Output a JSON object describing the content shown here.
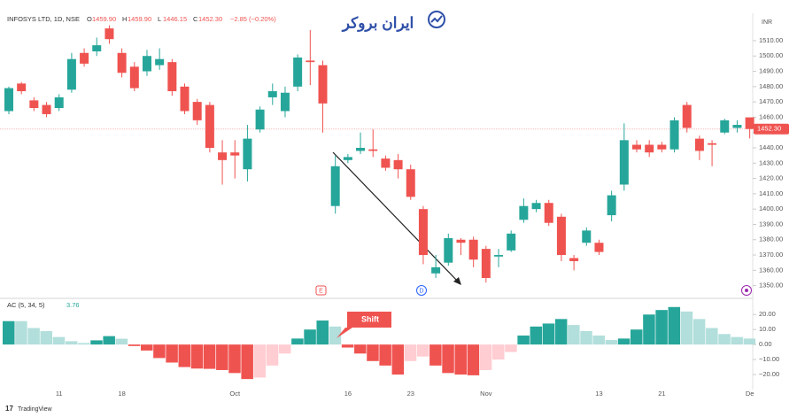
{
  "header": {
    "symbol": "INFOSYS LTD, 1D, NSE",
    "ohlc": [
      {
        "key": "O",
        "text": "1459.90"
      },
      {
        "key": "H",
        "text": "1459.90"
      },
      {
        "key": "L",
        "text": "1446.15"
      },
      {
        "key": "C",
        "text": "1452.30"
      }
    ],
    "change": "−2.85 (−0.20%)"
  },
  "watermark": "ایران بروکر",
  "footer": "TradingView",
  "events": [
    "E",
    "D"
  ],
  "chart_data": [
    {
      "type": "candlestick",
      "currency": "INR",
      "categories": [
        null,
        null,
        null,
        null,
        "11",
        null,
        null,
        null,
        null,
        "18",
        null,
        null,
        null,
        null,
        null,
        null,
        null,
        null,
        "Oct",
        null,
        null,
        null,
        null,
        null,
        null,
        null,
        null,
        "16",
        null,
        null,
        null,
        null,
        "23",
        null,
        null,
        null,
        null,
        null,
        "Nov",
        null,
        null,
        null,
        null,
        null,
        null,
        null,
        null,
        "13",
        null,
        null,
        null,
        null,
        "21",
        null,
        null,
        null,
        null,
        null,
        null,
        "De"
      ],
      "open": [
        1464,
        1482,
        1471,
        1468,
        1466,
        1478,
        1502,
        1503,
        1518,
        1502,
        1493,
        1490,
        1494,
        1496,
        1480,
        1470,
        1468,
        1437,
        1437,
        1426,
        1452,
        1473,
        1464,
        1480,
        1497,
        1494,
        1402,
        1432,
        1438,
        1439,
        1433,
        1432,
        1426,
        1400,
        1358,
        1365,
        1380,
        1380,
        1374,
        1369,
        1373,
        1393,
        1400,
        1404,
        1395,
        1368,
        1378,
        1378,
        1396,
        1416,
        1442,
        1442,
        1442,
        1439,
        1468,
        1446,
        1443,
        1450,
        1453,
        1459.9
      ],
      "high": [
        1480,
        1483,
        1473,
        1470,
        1475,
        1502,
        1505,
        1512,
        1520,
        1505,
        1496,
        1504,
        1505,
        1498,
        1482,
        1472,
        1470,
        1445,
        1445,
        1455,
        1467,
        1482,
        1480,
        1501,
        1517,
        1497,
        1435,
        1436,
        1450,
        1452,
        1435,
        1436,
        1429,
        1402,
        1370,
        1384,
        1381,
        1382,
        1376,
        1374,
        1386,
        1407,
        1406,
        1406,
        1397,
        1370,
        1388,
        1380,
        1412,
        1456,
        1445,
        1445,
        1444,
        1460,
        1470,
        1448,
        1445,
        1459,
        1458,
        1459.9
      ],
      "low": [
        1462,
        1475,
        1464,
        1460,
        1464,
        1476,
        1493,
        1500,
        1508,
        1486,
        1477,
        1487,
        1491,
        1474,
        1462,
        1455,
        1437,
        1416,
        1420,
        1418,
        1450,
        1468,
        1460,
        1477,
        1481,
        1450,
        1397,
        1430,
        1436,
        1434,
        1425,
        1420,
        1406,
        1364,
        1355,
        1363,
        1370,
        1362,
        1352,
        1362,
        1372,
        1391,
        1398,
        1389,
        1366,
        1360,
        1376,
        1370,
        1392,
        1412,
        1437,
        1434,
        1437,
        1437,
        1450,
        1432,
        1428,
        1449,
        1450,
        1446.15
      ],
      "close": [
        1479,
        1477,
        1466,
        1462,
        1473,
        1498,
        1495,
        1507,
        1511,
        1489,
        1479,
        1500,
        1498,
        1477,
        1464,
        1458,
        1440,
        1432,
        1435,
        1446,
        1465,
        1477,
        1476,
        1499,
        1496,
        1469,
        1428,
        1434,
        1440,
        1438,
        1427,
        1426,
        1408,
        1370,
        1362,
        1381,
        1378,
        1367,
        1355,
        1370,
        1384,
        1402,
        1404,
        1391,
        1370,
        1366,
        1386,
        1372,
        1409,
        1445,
        1439,
        1437,
        1439,
        1458,
        1453,
        1438,
        1442,
        1458,
        1455,
        1452.3
      ],
      "up_color": "#26a69a",
      "down_color": "#ef5350",
      "last_price": {
        "value": 1452.3,
        "label": "1452.30"
      },
      "ylim": [
        1344,
        1525
      ],
      "yticks": [
        {
          "value": 1350,
          "label": "1350.00"
        },
        {
          "value": 1360,
          "label": "1360.00"
        },
        {
          "value": 1370,
          "label": "1370.00"
        },
        {
          "value": 1380,
          "label": "1380.00"
        },
        {
          "value": 1390,
          "label": "1390.00"
        },
        {
          "value": 1400,
          "label": "1400.00"
        },
        {
          "value": 1410,
          "label": "1410.00"
        },
        {
          "value": 1420,
          "label": "1420.00"
        },
        {
          "value": 1430,
          "label": "1430.00"
        },
        {
          "value": 1440,
          "label": "1440.00"
        },
        {
          "value": 1450,
          "label": "1450.00"
        },
        {
          "value": 1460,
          "label": "1460.00"
        },
        {
          "value": 1470,
          "label": "1470.00"
        },
        {
          "value": 1480,
          "label": "1480.00"
        },
        {
          "value": 1490,
          "label": "1490.00"
        },
        {
          "value": 1500,
          "label": "1500.00"
        },
        {
          "value": 1510,
          "label": "1510.00"
        }
      ]
    },
    {
      "type": "histogram",
      "title": "AC (5, 34, 5)",
      "current_value_label": "3.76",
      "values": [
        15.6,
        15.6,
        11,
        9,
        5,
        2.2,
        1,
        2.8,
        5.6,
        3.9,
        -1,
        -4,
        -9,
        -12,
        -15,
        -16,
        -16.2,
        -17,
        -19,
        -23,
        -22,
        -14,
        -6,
        4,
        10,
        16,
        12,
        -2,
        -6,
        -11,
        -14,
        -20,
        -11,
        -8,
        -14,
        -19,
        -20,
        -20.5,
        -17,
        -10,
        -5,
        6,
        12,
        14,
        17,
        13,
        9,
        6,
        3,
        4,
        10,
        20,
        23,
        25,
        22,
        17,
        11,
        7,
        5,
        4
      ],
      "colors": {
        "rising_positive": "#26a69a",
        "falling_positive": "#b2dfdb",
        "falling_negative": "#ef5350",
        "rising_negative": "#ffcdd2"
      },
      "annotation": "Shift",
      "ylim": [
        -30,
        29
      ],
      "yticks": [
        {
          "value": 20,
          "label": "20.00"
        },
        {
          "value": 10,
          "label": "10.00"
        },
        {
          "value": 0,
          "label": "0.00"
        },
        {
          "value": -10,
          "label": "−10.00"
        },
        {
          "value": -20,
          "label": "−20.00"
        }
      ]
    }
  ]
}
